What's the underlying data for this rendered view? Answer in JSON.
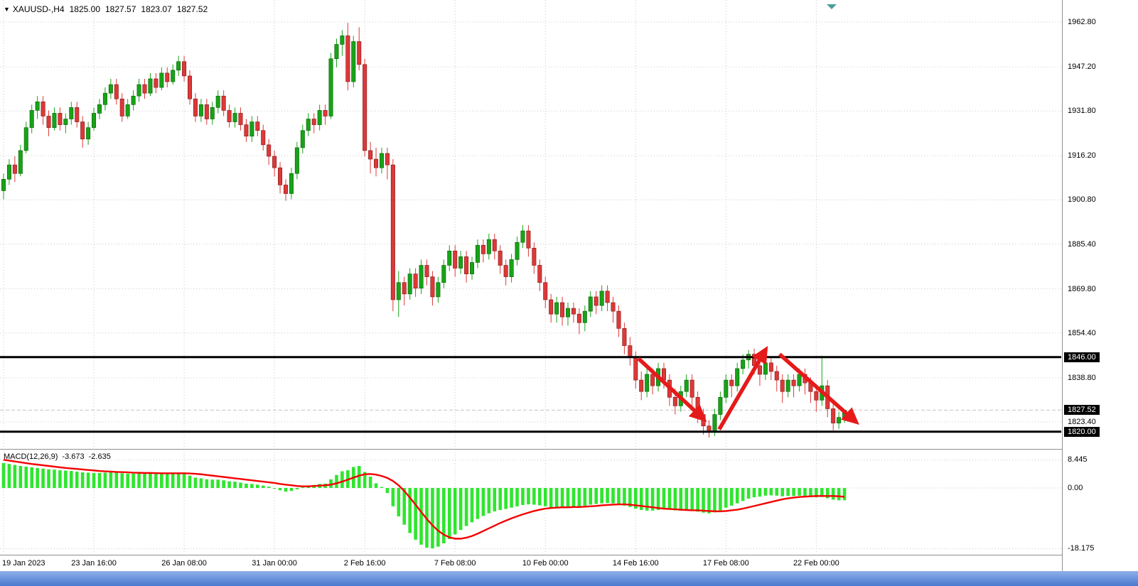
{
  "header": {
    "symbol_period": "XAUUSD-,H4",
    "open": "1825.00",
    "high": "1827.57",
    "low": "1823.07",
    "close": "1827.52"
  },
  "colors": {
    "bull": "#17A317",
    "bull_border": "#0A5E0A",
    "bear": "#DD3838",
    "bear_border": "#7E1515",
    "histogram": "#2EE62E",
    "signal_line": "#F40000",
    "arrow": "#E51A1A",
    "hline": "#000000",
    "grid": "#C9C9C9",
    "tag_bg": "#000000",
    "tag_text": "#FFFFFF",
    "scroll_marker": "#4E9B9B",
    "taskbar_top": "#8FB0EA",
    "taskbar_bottom": "#4A78CF"
  },
  "chart_data": [
    {
      "type": "candlestick",
      "title": "XAUUSD-,H4",
      "x_axis": {
        "labels": [
          "19 Jan 2023",
          "23 Jan 16:00",
          "26 Jan 08:00",
          "31 Jan 00:00",
          "2 Feb 16:00",
          "7 Feb 08:00",
          "10 Feb 00:00",
          "14 Feb 16:00",
          "17 Feb 08:00",
          "22 Feb 00:00"
        ],
        "bar_indices": [
          0,
          16,
          32,
          48,
          64,
          80,
          96,
          112,
          128,
          144
        ]
      },
      "y_axis": {
        "tick_labels": [
          "1962.80",
          "1947.20",
          "1931.80",
          "1916.20",
          "1900.80",
          "1885.40",
          "1869.80",
          "1854.40",
          "1838.80",
          "1823.40"
        ]
      },
      "horizontal_lines": [
        {
          "price": 1846.0,
          "label": "1846.00"
        },
        {
          "price": 1820.0,
          "label": "1820.00"
        }
      ],
      "current_price": {
        "value": 1827.52,
        "label": "1827.52"
      },
      "annotations": {
        "arrows": [
          {
            "from_bar": 112.5,
            "from_price": 1845.5,
            "to_bar": 124,
            "to_price": 1824.5
          },
          {
            "from_bar": 126.8,
            "from_price": 1820.8,
            "to_bar": 135,
            "to_price": 1848.5
          },
          {
            "from_bar": 137.5,
            "from_price": 1847.0,
            "to_bar": 151,
            "to_price": 1823.5
          }
        ]
      },
      "candles_ohlc": [
        [
          1904,
          1910,
          1901,
          1908
        ],
        [
          1908,
          1915,
          1906,
          1913
        ],
        [
          1913,
          1916,
          1907,
          1910
        ],
        [
          1910,
          1920,
          1909,
          1918
        ],
        [
          1918,
          1928,
          1917,
          1926
        ],
        [
          1926,
          1934,
          1924,
          1932
        ],
        [
          1932,
          1937,
          1929,
          1935
        ],
        [
          1935,
          1937,
          1927,
          1930
        ],
        [
          1930,
          1932,
          1923,
          1926
        ],
        [
          1926,
          1933,
          1925,
          1931
        ],
        [
          1931,
          1933,
          1925,
          1927
        ],
        [
          1927,
          1931,
          1924,
          1929
        ],
        [
          1929,
          1935,
          1927,
          1933
        ],
        [
          1933,
          1935,
          1926,
          1928
        ],
        [
          1928,
          1930,
          1919,
          1922
        ],
        [
          1922,
          1928,
          1920,
          1926
        ],
        [
          1926,
          1933,
          1925,
          1931
        ],
        [
          1931,
          1936,
          1929,
          1934
        ],
        [
          1934,
          1940,
          1932,
          1938
        ],
        [
          1938,
          1943,
          1936,
          1941
        ],
        [
          1941,
          1943,
          1934,
          1936
        ],
        [
          1936,
          1938,
          1928,
          1930
        ],
        [
          1930,
          1936,
          1929,
          1934
        ],
        [
          1934,
          1939,
          1932,
          1937
        ],
        [
          1937,
          1943,
          1935,
          1941
        ],
        [
          1941,
          1943,
          1936,
          1938
        ],
        [
          1938,
          1945,
          1937,
          1943
        ],
        [
          1943,
          1945,
          1938,
          1940
        ],
        [
          1940,
          1947,
          1939,
          1945
        ],
        [
          1945,
          1947,
          1940,
          1942
        ],
        [
          1942,
          1948,
          1941,
          1946
        ],
        [
          1946,
          1951,
          1944,
          1949
        ],
        [
          1949,
          1951,
          1942,
          1944
        ],
        [
          1944,
          1946,
          1934,
          1936
        ],
        [
          1936,
          1938,
          1928,
          1930
        ],
        [
          1930,
          1936,
          1928,
          1934
        ],
        [
          1934,
          1936,
          1927,
          1929
        ],
        [
          1929,
          1935,
          1927,
          1933
        ],
        [
          1933,
          1939,
          1931,
          1937
        ],
        [
          1937,
          1939,
          1930,
          1932
        ],
        [
          1932,
          1934,
          1926,
          1928
        ],
        [
          1928,
          1933,
          1926,
          1931
        ],
        [
          1931,
          1933,
          1925,
          1927
        ],
        [
          1927,
          1929,
          1921,
          1923
        ],
        [
          1923,
          1930,
          1921,
          1928
        ],
        [
          1928,
          1930,
          1923,
          1925
        ],
        [
          1925,
          1927,
          1918,
          1920
        ],
        [
          1920,
          1922,
          1913,
          1916
        ],
        [
          1916,
          1918,
          1909,
          1912
        ],
        [
          1912,
          1914,
          1903,
          1906
        ],
        [
          1906,
          1908,
          1900.5,
          1903
        ],
        [
          1903,
          1912,
          1901,
          1910
        ],
        [
          1910,
          1921,
          1908,
          1919
        ],
        [
          1919,
          1927,
          1917,
          1925
        ],
        [
          1925,
          1931,
          1923,
          1929
        ],
        [
          1929,
          1931,
          1924,
          1927
        ],
        [
          1927,
          1934,
          1925,
          1932
        ],
        [
          1932,
          1934,
          1927,
          1930
        ],
        [
          1930,
          1952,
          1929,
          1950
        ],
        [
          1950,
          1957,
          1947,
          1955
        ],
        [
          1955,
          1960,
          1951,
          1958
        ],
        [
          1958,
          1962.5,
          1939,
          1942
        ],
        [
          1942,
          1958,
          1940,
          1956
        ],
        [
          1956,
          1961,
          1946,
          1948
        ],
        [
          1948,
          1950,
          1916,
          1918
        ],
        [
          1918,
          1921,
          1910,
          1915
        ],
        [
          1915,
          1919,
          1909,
          1912
        ],
        [
          1912,
          1919,
          1910,
          1917
        ],
        [
          1917,
          1919,
          1908,
          1913
        ],
        [
          1913,
          1915,
          1862,
          1866
        ],
        [
          1866,
          1876,
          1860,
          1872
        ],
        [
          1872,
          1874,
          1864,
          1868
        ],
        [
          1868,
          1877,
          1866,
          1875
        ],
        [
          1875,
          1877,
          1867,
          1870
        ],
        [
          1870,
          1880,
          1868,
          1878
        ],
        [
          1878,
          1880,
          1871,
          1874
        ],
        [
          1874,
          1876,
          1864,
          1867
        ],
        [
          1867,
          1874,
          1865,
          1872
        ],
        [
          1872,
          1880,
          1870,
          1878
        ],
        [
          1878,
          1885,
          1876,
          1883
        ],
        [
          1883,
          1885,
          1874,
          1877
        ],
        [
          1877,
          1883,
          1875,
          1881
        ],
        [
          1881,
          1883,
          1872,
          1875
        ],
        [
          1875,
          1881,
          1873,
          1879
        ],
        [
          1879,
          1887,
          1877,
          1885
        ],
        [
          1885,
          1887,
          1879,
          1882
        ],
        [
          1882,
          1889,
          1880,
          1887
        ],
        [
          1887,
          1889,
          1880,
          1883
        ],
        [
          1883,
          1885,
          1875,
          1878
        ],
        [
          1878,
          1880,
          1871,
          1874
        ],
        [
          1874,
          1882,
          1872,
          1880
        ],
        [
          1880,
          1888,
          1878,
          1886
        ],
        [
          1886,
          1892,
          1884,
          1890
        ],
        [
          1890,
          1892,
          1881,
          1884
        ],
        [
          1884,
          1886,
          1875,
          1878
        ],
        [
          1878,
          1880,
          1869,
          1872
        ],
        [
          1872,
          1874,
          1863,
          1866
        ],
        [
          1866,
          1868,
          1858,
          1861
        ],
        [
          1861,
          1867,
          1858,
          1865
        ],
        [
          1865,
          1867,
          1857,
          1860
        ],
        [
          1860,
          1865,
          1857,
          1863
        ],
        [
          1863,
          1865,
          1858,
          1861
        ],
        [
          1861,
          1863,
          1854,
          1858
        ],
        [
          1858,
          1864,
          1855,
          1862
        ],
        [
          1862,
          1869,
          1860,
          1867
        ],
        [
          1867,
          1869,
          1861,
          1864
        ],
        [
          1864,
          1871,
          1862,
          1869
        ],
        [
          1869,
          1871,
          1862,
          1865
        ],
        [
          1865,
          1867,
          1858,
          1862
        ],
        [
          1862,
          1864,
          1853,
          1856
        ],
        [
          1856,
          1858,
          1847,
          1850
        ],
        [
          1850,
          1853,
          1843,
          1846
        ],
        [
          1846,
          1848,
          1835,
          1838
        ],
        [
          1838,
          1841,
          1831,
          1834
        ],
        [
          1834,
          1842,
          1832,
          1840
        ],
        [
          1840,
          1842,
          1833,
          1836
        ],
        [
          1836,
          1844,
          1834,
          1842
        ],
        [
          1842,
          1844,
          1835,
          1838
        ],
        [
          1838,
          1840,
          1829,
          1832
        ],
        [
          1832,
          1835,
          1826,
          1829
        ],
        [
          1829,
          1836,
          1827,
          1834
        ],
        [
          1834,
          1840,
          1832,
          1838
        ],
        [
          1838,
          1840,
          1829,
          1832
        ],
        [
          1832,
          1834,
          1823,
          1826
        ],
        [
          1826,
          1828,
          1819,
          1822
        ],
        [
          1822,
          1824,
          1818,
          1820
        ],
        [
          1820,
          1828,
          1818.5,
          1826
        ],
        [
          1826,
          1834,
          1824,
          1832
        ],
        [
          1832,
          1840,
          1830,
          1838
        ],
        [
          1838,
          1840,
          1832,
          1836
        ],
        [
          1836,
          1844,
          1834,
          1842
        ],
        [
          1842,
          1847,
          1840,
          1845
        ],
        [
          1845,
          1848.5,
          1842,
          1847
        ],
        [
          1847,
          1849,
          1840,
          1843
        ],
        [
          1843,
          1845,
          1836,
          1840
        ],
        [
          1840,
          1846,
          1838,
          1844
        ],
        [
          1844,
          1846,
          1838,
          1841
        ],
        [
          1841,
          1843,
          1834,
          1838
        ],
        [
          1838,
          1840,
          1830,
          1834
        ],
        [
          1834,
          1840,
          1832,
          1838
        ],
        [
          1838,
          1840,
          1832,
          1836
        ],
        [
          1836,
          1842,
          1834,
          1840
        ],
        [
          1840,
          1842,
          1833,
          1837
        ],
        [
          1837,
          1839,
          1830,
          1834
        ],
        [
          1834,
          1836,
          1827,
          1831
        ],
        [
          1831,
          1846.5,
          1829,
          1836
        ],
        [
          1836,
          1838,
          1825,
          1828
        ],
        [
          1828,
          1830,
          1820.5,
          1823
        ],
        [
          1823,
          1827,
          1821,
          1825
        ],
        [
          1825,
          1827.57,
          1823.07,
          1827.52
        ]
      ]
    },
    {
      "type": "bar",
      "name": "MACD(12,26,9)",
      "macd_value": "-3.673",
      "signal_value": "-2.635",
      "y_axis_labels": [
        "8.445",
        "0.00",
        "-18.175"
      ],
      "histogram": [
        7.5,
        7.2,
        6.9,
        6.6,
        6.4,
        6.2,
        6.0,
        5.8,
        5.6,
        5.5,
        5.3,
        5.2,
        5.1,
        4.9,
        4.7,
        4.6,
        4.5,
        4.5,
        4.6,
        4.7,
        4.6,
        4.4,
        4.3,
        4.3,
        4.4,
        4.3,
        4.4,
        4.3,
        4.4,
        4.3,
        4.4,
        4.5,
        4.2,
        3.7,
        3.1,
        2.9,
        2.6,
        2.5,
        2.5,
        2.3,
        2.0,
        1.9,
        1.6,
        1.3,
        1.2,
        1.0,
        0.7,
        0.4,
        -0.1,
        -0.7,
        -1.1,
        -0.9,
        -0.4,
        0.2,
        0.7,
        0.9,
        1.2,
        1.3,
        2.6,
        3.9,
        5.0,
        5.3,
        6.3,
        6.6,
        4.8,
        3.4,
        1.4,
        0.3,
        -1.5,
        -5.5,
        -8.5,
        -11.0,
        -13.5,
        -15.5,
        -17.0,
        -17.9,
        -18.1,
        -17.6,
        -16.6,
        -15.3,
        -13.9,
        -12.6,
        -11.4,
        -10.3,
        -9.3,
        -8.4,
        -7.6,
        -7.0,
        -6.6,
        -6.3,
        -5.9,
        -5.5,
        -5.1,
        -4.9,
        -5.0,
        -5.2,
        -5.5,
        -5.8,
        -5.9,
        -5.9,
        -5.8,
        -5.7,
        -5.5,
        -5.3,
        -5.0,
        -4.8,
        -4.6,
        -4.5,
        -4.6,
        -4.9,
        -5.3,
        -5.7,
        -6.2,
        -6.6,
        -6.8,
        -6.8,
        -6.6,
        -6.4,
        -6.5,
        -6.7,
        -6.8,
        -6.7,
        -6.8,
        -7.1,
        -7.4,
        -7.6,
        -7.3,
        -6.7,
        -5.9,
        -5.3,
        -4.6,
        -3.9,
        -3.2,
        -2.8,
        -2.6,
        -2.3,
        -2.2,
        -2.3,
        -2.5,
        -2.4,
        -2.4,
        -2.3,
        -2.4,
        -2.6,
        -2.8,
        -2.7,
        -3.1,
        -3.5,
        -3.7,
        -3.673
      ],
      "signal": [
        8.44,
        8.2,
        7.95,
        7.7,
        7.45,
        7.2,
        7.0,
        6.8,
        6.6,
        6.4,
        6.2,
        6.0,
        5.85,
        5.7,
        5.55,
        5.4,
        5.25,
        5.1,
        5.0,
        4.9,
        4.8,
        4.75,
        4.7,
        4.6,
        4.55,
        4.5,
        4.5,
        4.45,
        4.4,
        4.4,
        4.4,
        4.4,
        4.4,
        4.35,
        4.25,
        4.1,
        3.9,
        3.7,
        3.5,
        3.3,
        3.1,
        2.9,
        2.7,
        2.5,
        2.3,
        2.1,
        1.9,
        1.7,
        1.5,
        1.2,
        1.0,
        0.8,
        0.6,
        0.5,
        0.5,
        0.6,
        0.7,
        0.8,
        1.0,
        1.4,
        1.9,
        2.5,
        3.1,
        3.7,
        4.1,
        4.2,
        4.0,
        3.6,
        3.0,
        2.1,
        0.8,
        -0.9,
        -2.9,
        -5.0,
        -7.2,
        -9.3,
        -11.2,
        -12.8,
        -14.0,
        -14.8,
        -15.2,
        -15.2,
        -14.9,
        -14.4,
        -13.7,
        -12.9,
        -12.1,
        -11.3,
        -10.5,
        -9.8,
        -9.1,
        -8.5,
        -7.9,
        -7.4,
        -6.9,
        -6.5,
        -6.2,
        -6.0,
        -5.9,
        -5.8,
        -5.8,
        -5.7,
        -5.7,
        -5.6,
        -5.5,
        -5.4,
        -5.2,
        -5.1,
        -5.0,
        -4.9,
        -4.9,
        -5.0,
        -5.2,
        -5.4,
        -5.6,
        -5.8,
        -6.0,
        -6.2,
        -6.3,
        -6.4,
        -6.5,
        -6.6,
        -6.7,
        -6.7,
        -6.8,
        -6.9,
        -7.0,
        -7.0,
        -6.9,
        -6.7,
        -6.5,
        -6.2,
        -5.8,
        -5.4,
        -5.0,
        -4.6,
        -4.2,
        -3.8,
        -3.4,
        -3.1,
        -2.9,
        -2.7,
        -2.6,
        -2.5,
        -2.4,
        -2.4,
        -2.4,
        -2.4,
        -2.5,
        -2.635
      ]
    }
  ]
}
